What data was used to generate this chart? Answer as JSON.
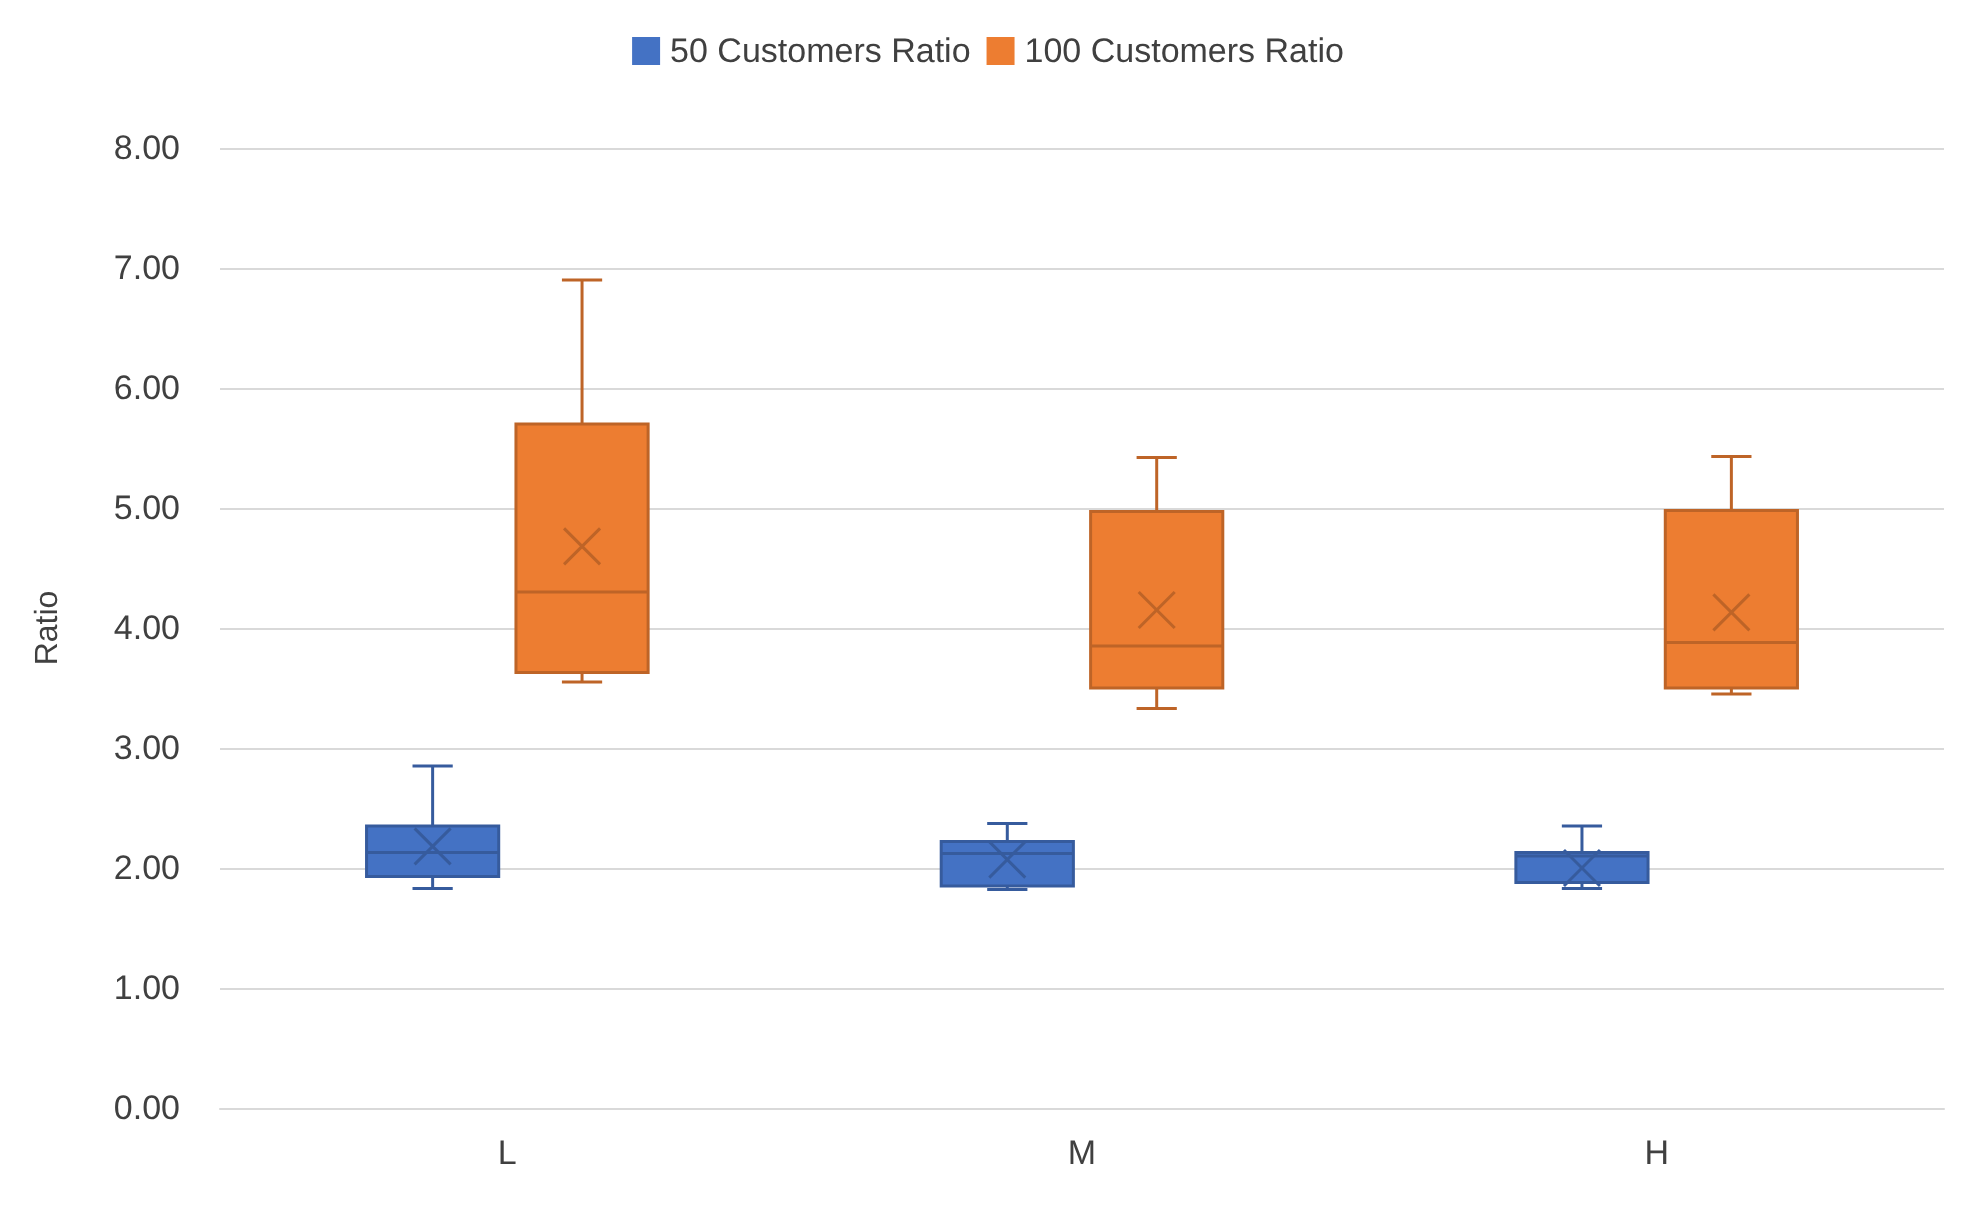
{
  "chart_data": {
    "type": "box",
    "ylabel": "Ratio",
    "categories": [
      "L",
      "M",
      "H"
    ],
    "series": [
      {
        "name": "50 Customers Ratio",
        "color": "#4472c4",
        "boxes": [
          {
            "low": 1.83,
            "q1": 1.93,
            "median": 2.13,
            "q3": 2.35,
            "high": 2.85,
            "mean": 2.18
          },
          {
            "low": 1.82,
            "q1": 1.85,
            "median": 2.12,
            "q3": 2.22,
            "high": 2.37,
            "mean": 2.07
          },
          {
            "low": 1.83,
            "q1": 1.88,
            "median": 2.1,
            "q3": 2.13,
            "high": 2.35,
            "mean": 2.0
          }
        ]
      },
      {
        "name": "100 Customers Ratio",
        "color": "#ed7d31",
        "boxes": [
          {
            "low": 3.55,
            "q1": 3.63,
            "median": 4.3,
            "q3": 5.7,
            "high": 6.9,
            "mean": 4.68
          },
          {
            "low": 3.33,
            "q1": 3.5,
            "median": 3.85,
            "q3": 4.97,
            "high": 5.42,
            "mean": 4.15
          },
          {
            "low": 3.45,
            "q1": 3.5,
            "median": 3.88,
            "q3": 4.98,
            "high": 5.43,
            "mean": 4.13
          }
        ]
      }
    ],
    "ylim": [
      0,
      8
    ],
    "yticks": [
      {
        "value": 0,
        "label": "0.00"
      },
      {
        "value": 1,
        "label": "1.00"
      },
      {
        "value": 2,
        "label": "2.00"
      },
      {
        "value": 3,
        "label": "3.00"
      },
      {
        "value": 4,
        "label": "4.00"
      },
      {
        "value": 5,
        "label": "5.00"
      },
      {
        "value": 6,
        "label": "6.00"
      },
      {
        "value": 7,
        "label": "7.00"
      },
      {
        "value": 8,
        "label": "8.00"
      }
    ],
    "grid": "y",
    "legend": "top"
  }
}
